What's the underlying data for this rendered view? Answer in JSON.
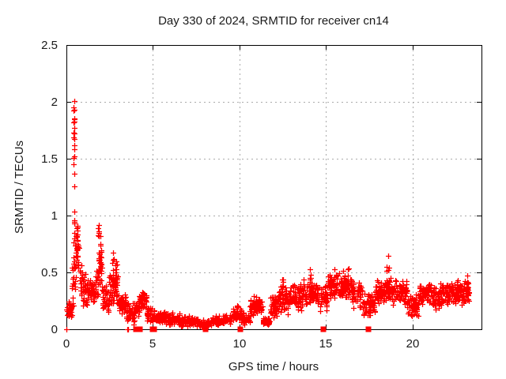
{
  "chart_data": {
    "type": "scatter",
    "title": "Day 330 of 2024, SRMTID for receiver cn14",
    "xlabel": "GPS time / hours",
    "ylabel": "SRMTID / TECUs",
    "xlim": [
      0,
      24
    ],
    "ylim": [
      0,
      2.5
    ],
    "xticks": {
      "values": [
        0,
        5,
        10,
        15,
        20
      ],
      "labels": [
        "0",
        "5",
        "10",
        "15",
        "20"
      ]
    },
    "yticks": {
      "values": [
        0,
        0.5,
        1,
        1.5,
        2,
        2.5
      ],
      "labels": [
        "0",
        "0.5",
        "1",
        "1.5",
        "2",
        "2.5"
      ]
    },
    "grid": "dashed",
    "legend": "none",
    "marker": "plus",
    "colors": {
      "points": "#ff0000",
      "axis": "#000000",
      "grid": "#aaaaaa",
      "text": "#1a1a1a",
      "background": "#ffffff"
    },
    "seed": 11,
    "band_segments": [
      [
        0.0,
        0.32,
        0.08,
        0.28,
        34
      ],
      [
        0.32,
        0.42,
        0.15,
        0.6,
        10
      ],
      [
        0.42,
        0.55,
        0.2,
        0.9,
        16
      ],
      [
        0.55,
        0.72,
        0.5,
        0.93,
        22
      ],
      [
        0.72,
        0.95,
        0.28,
        0.6,
        22
      ],
      [
        0.95,
        1.65,
        0.2,
        0.5,
        62
      ],
      [
        1.65,
        1.85,
        0.28,
        0.55,
        18
      ],
      [
        1.85,
        2.05,
        0.3,
        0.85,
        22
      ],
      [
        2.05,
        2.45,
        0.12,
        0.42,
        36
      ],
      [
        2.45,
        3.0,
        0.18,
        0.58,
        50
      ],
      [
        3.0,
        3.45,
        0.1,
        0.32,
        40
      ],
      [
        3.45,
        3.95,
        0.04,
        0.25,
        40
      ],
      [
        3.95,
        4.2,
        0.08,
        0.25,
        20
      ],
      [
        4.2,
        4.65,
        0.15,
        0.36,
        40
      ],
      [
        4.65,
        5.1,
        0.05,
        0.2,
        38
      ],
      [
        5.1,
        5.7,
        0.04,
        0.17,
        50
      ],
      [
        5.7,
        6.6,
        0.03,
        0.15,
        75
      ],
      [
        6.6,
        7.6,
        0.02,
        0.12,
        80
      ],
      [
        7.6,
        8.4,
        0.01,
        0.09,
        62
      ],
      [
        8.4,
        9.6,
        0.03,
        0.13,
        90
      ],
      [
        9.6,
        10.15,
        0.05,
        0.2,
        45
      ],
      [
        10.15,
        10.6,
        0.03,
        0.15,
        38
      ],
      [
        10.6,
        11.35,
        0.1,
        0.3,
        62
      ],
      [
        11.35,
        11.75,
        0.02,
        0.12,
        34
      ],
      [
        11.75,
        12.2,
        0.08,
        0.3,
        40
      ],
      [
        12.2,
        12.9,
        0.12,
        0.4,
        60
      ],
      [
        12.9,
        13.7,
        0.15,
        0.4,
        70
      ],
      [
        13.7,
        14.5,
        0.2,
        0.45,
        70
      ],
      [
        14.5,
        15.1,
        0.15,
        0.4,
        52
      ],
      [
        15.1,
        16.5,
        0.25,
        0.5,
        120
      ],
      [
        16.5,
        17.1,
        0.18,
        0.45,
        52
      ],
      [
        17.1,
        17.85,
        0.1,
        0.32,
        62
      ],
      [
        17.85,
        18.5,
        0.2,
        0.45,
        56
      ],
      [
        18.5,
        19.7,
        0.2,
        0.46,
        105
      ],
      [
        19.7,
        20.4,
        0.1,
        0.32,
        58
      ],
      [
        20.4,
        21.1,
        0.2,
        0.42,
        60
      ],
      [
        21.1,
        21.6,
        0.15,
        0.38,
        42
      ],
      [
        21.6,
        23.0,
        0.2,
        0.43,
        122
      ],
      [
        23.0,
        23.3,
        0.22,
        0.46,
        28
      ]
    ],
    "spike_columns": [
      [
        0.44,
        1.55,
        2.06,
        16
      ],
      [
        0.46,
        0.9,
        1.55,
        7
      ],
      [
        0.43,
        0.6,
        1.0,
        6
      ],
      [
        0.62,
        0.5,
        0.93,
        8
      ],
      [
        1.88,
        0.35,
        1.0,
        14
      ],
      [
        1.97,
        0.3,
        0.82,
        9
      ],
      [
        2.7,
        0.35,
        0.73,
        10
      ],
      [
        2.85,
        0.3,
        0.65,
        8
      ],
      [
        4.4,
        0.2,
        0.36,
        8
      ],
      [
        9.9,
        0.1,
        0.22,
        6
      ],
      [
        11.15,
        0.15,
        0.3,
        7
      ],
      [
        12.5,
        0.2,
        0.44,
        9
      ],
      [
        13.5,
        0.25,
        0.45,
        7
      ],
      [
        14.1,
        0.25,
        0.53,
        10
      ],
      [
        15.5,
        0.3,
        0.55,
        8
      ],
      [
        16.05,
        0.32,
        0.57,
        10
      ],
      [
        16.3,
        0.3,
        0.55,
        8
      ],
      [
        18.55,
        0.3,
        0.65,
        13
      ],
      [
        18.65,
        0.28,
        0.58,
        8
      ],
      [
        22.6,
        0.25,
        0.46,
        8
      ],
      [
        23.2,
        0.25,
        0.5,
        8
      ]
    ],
    "zero_plus_points": [
      [
        0.0,
        0.0
      ],
      [
        3.5,
        0.0
      ],
      [
        3.57,
        0.0
      ]
    ],
    "zero_square_xs": [
      4.0,
      4.25,
      4.97,
      5.07,
      8.05,
      10.05,
      14.85,
      17.45
    ]
  }
}
